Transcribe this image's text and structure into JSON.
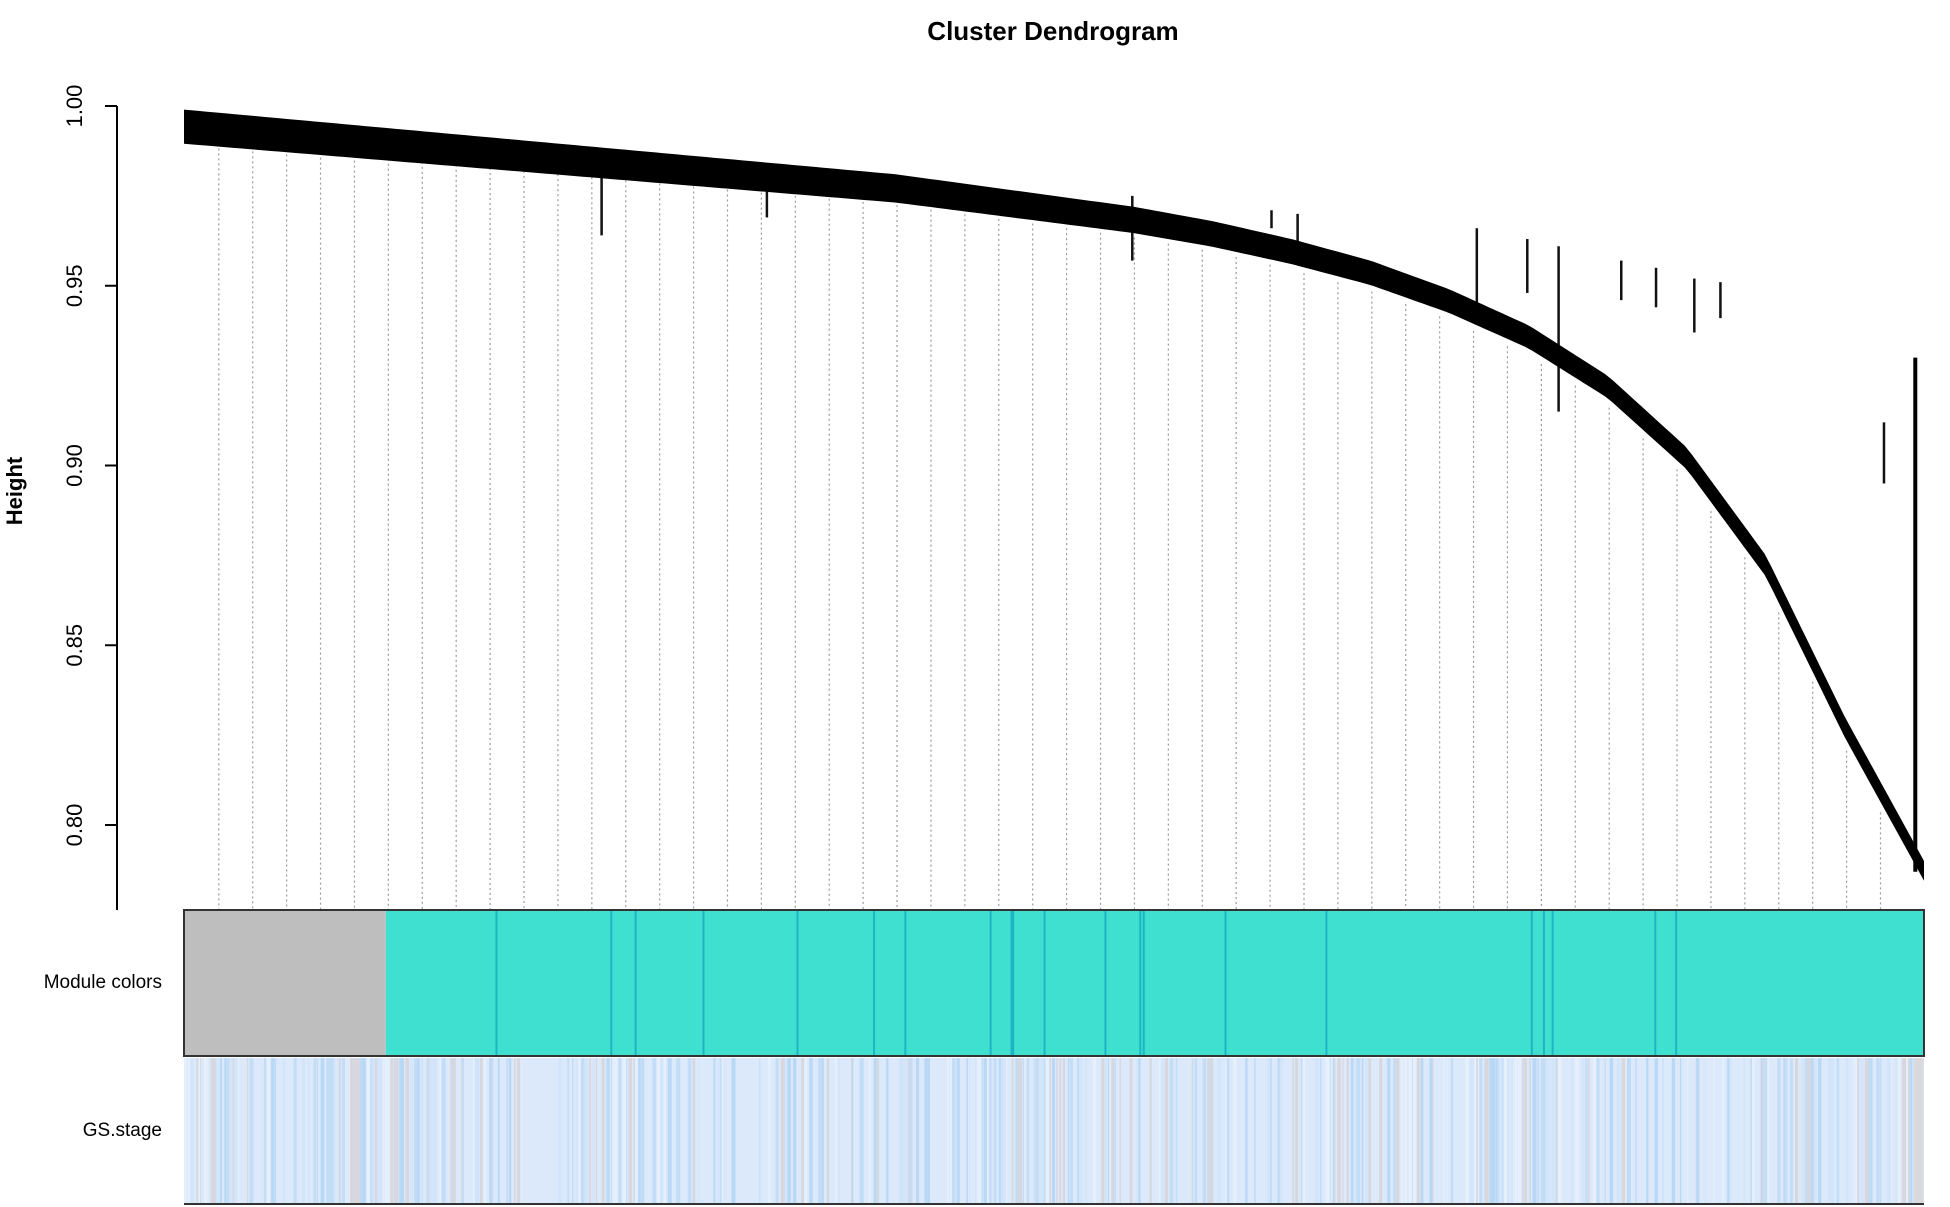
{
  "chart_data": {
    "type": "dendrogram",
    "title": "Cluster Dendrogram",
    "xlabel": "",
    "ylabel": "Height",
    "ylim": [
      0.78,
      1.0
    ],
    "yticks": [
      0.8,
      0.85,
      0.9,
      0.95,
      1.0
    ],
    "tick_labels": [
      "0.80",
      "0.85",
      "0.90",
      "0.95",
      "1.00"
    ],
    "grid": false,
    "merge_heights": [
      0.999,
      0.997,
      0.995,
      0.993,
      0.991,
      0.989,
      0.987,
      0.985,
      0.983,
      0.981,
      0.978,
      0.975,
      0.972,
      0.968,
      0.963,
      0.957,
      0.949,
      0.939,
      0.925,
      0.905,
      0.875,
      0.83,
      0.79
    ],
    "leaf_drops": [
      {
        "position": 0.24,
        "top": 0.985,
        "bottom": 0.964
      },
      {
        "position": 0.335,
        "top": 0.982,
        "bottom": 0.969
      },
      {
        "position": 0.349,
        "top": 0.981,
        "bottom": 0.978
      },
      {
        "position": 0.43,
        "top": 0.979,
        "bottom": 0.972
      },
      {
        "position": 0.545,
        "top": 0.975,
        "bottom": 0.957
      },
      {
        "position": 0.625,
        "top": 0.971,
        "bottom": 0.966
      },
      {
        "position": 0.64,
        "top": 0.97,
        "bottom": 0.962
      },
      {
        "position": 0.743,
        "top": 0.966,
        "bottom": 0.944
      },
      {
        "position": 0.772,
        "top": 0.963,
        "bottom": 0.948
      },
      {
        "position": 0.79,
        "top": 0.961,
        "bottom": 0.915
      },
      {
        "position": 0.826,
        "top": 0.957,
        "bottom": 0.946
      },
      {
        "position": 0.846,
        "top": 0.955,
        "bottom": 0.944
      },
      {
        "position": 0.868,
        "top": 0.952,
        "bottom": 0.937
      },
      {
        "position": 0.883,
        "top": 0.951,
        "bottom": 0.941
      },
      {
        "position": 0.977,
        "top": 0.912,
        "bottom": 0.895
      }
    ],
    "color_rows": [
      {
        "label": "Module colors",
        "segments": [
          {
            "color": "#bebebe",
            "width": 0.116
          },
          {
            "color": "#40e0d0",
            "width": 0.884
          }
        ],
        "accent_stripes": [
          0.179,
          0.245,
          0.259,
          0.298,
          0.352,
          0.396,
          0.414,
          0.463,
          0.475,
          0.476,
          0.494,
          0.529,
          0.549,
          0.551,
          0.598,
          0.656,
          0.774,
          0.781,
          0.786,
          0.845,
          0.857
        ],
        "accent_color": "#1fb4c4"
      },
      {
        "label": "GS.stage",
        "base_color": "#dbe9fa",
        "palette": [
          "#c4ddf7",
          "#d2e5fb",
          "#e6f0fc",
          "#d7d7dd",
          "#b8d8f6"
        ]
      }
    ]
  }
}
